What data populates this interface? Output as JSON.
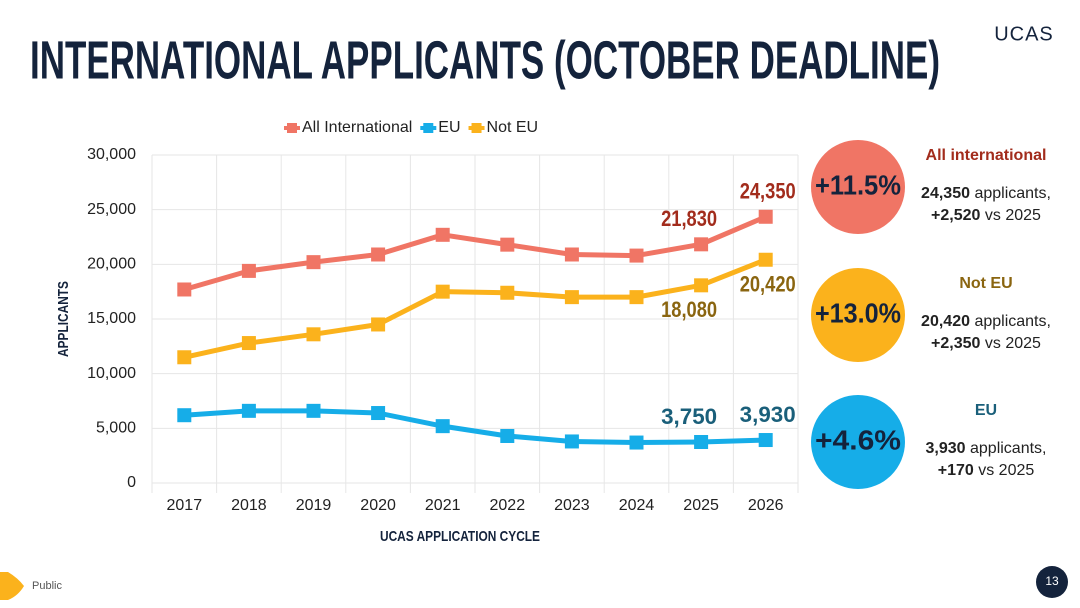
{
  "slide": {
    "title": "INTERNATIONAL APPLICANTS (OCTOBER DEADLINE)",
    "logo": "UCAS",
    "classification": "Public",
    "page_number": "13",
    "callouts": [
      {
        "percent": "+11.5%",
        "heading": "All international",
        "applicants": "24,350",
        "applicants_text": "applicants,",
        "change": "+2,520",
        "change_text": "vs 2025",
        "color": "#f07565",
        "heading_color": "#a22c1c"
      },
      {
        "percent": "+13.0%",
        "heading": "Not EU",
        "applicants": "20,420",
        "applicants_text": "applicants,",
        "change": "+2,350",
        "change_text": "vs 2025",
        "color": "#fbb21c",
        "heading_color": "#8a6510"
      },
      {
        "percent": "+4.6%",
        "heading": "EU",
        "applicants": "3,930",
        "applicants_text": "applicants,",
        "change": "+170",
        "change_text": "vs 2025",
        "color": "#16ade8",
        "heading_color": "#1a5f7a"
      }
    ]
  },
  "chart_data": {
    "type": "line",
    "x_label": "UCAS APPLICATION CYCLE",
    "y_label": "APPLICANTS",
    "categories": [
      "2017",
      "2018",
      "2019",
      "2020",
      "2021",
      "2022",
      "2023",
      "2024",
      "2025",
      "2026"
    ],
    "series": [
      {
        "name": "All International",
        "color": "#f07565",
        "label_color": "#a22c1c",
        "values": [
          17700,
          19400,
          20200,
          20900,
          22700,
          21800,
          20900,
          20800,
          21830,
          24350
        ],
        "value_labels": [
          null,
          null,
          null,
          null,
          null,
          null,
          null,
          null,
          "21,830",
          "24,350"
        ]
      },
      {
        "name": "EU",
        "color": "#16ade8",
        "label_color": "#1a5f7a",
        "values": [
          6200,
          6600,
          6600,
          6400,
          5200,
          4300,
          3800,
          3700,
          3750,
          3930
        ],
        "value_labels": [
          null,
          null,
          null,
          null,
          null,
          null,
          null,
          null,
          "3,750",
          "3,930"
        ]
      },
      {
        "name": "Not EU",
        "color": "#fbb21c",
        "label_color": "#8a6510",
        "values": [
          11500,
          12800,
          13600,
          14500,
          17500,
          17400,
          17000,
          17000,
          18080,
          20420
        ],
        "value_labels": [
          null,
          null,
          null,
          null,
          null,
          null,
          null,
          null,
          "18,080",
          "20,420"
        ]
      }
    ],
    "ylim": [
      0,
      30000
    ],
    "yticks": [
      0,
      {
        "value": 5000,
        "label": "5,000"
      },
      {
        "value": 10000,
        "label": "10,000"
      },
      {
        "value": 15000,
        "label": "15,000"
      },
      {
        "value": 20000,
        "label": "20,000"
      },
      {
        "value": 25000,
        "label": "25,000"
      },
      {
        "value": 30000,
        "label": "30,000"
      }
    ],
    "grid": true,
    "legend": "top"
  }
}
